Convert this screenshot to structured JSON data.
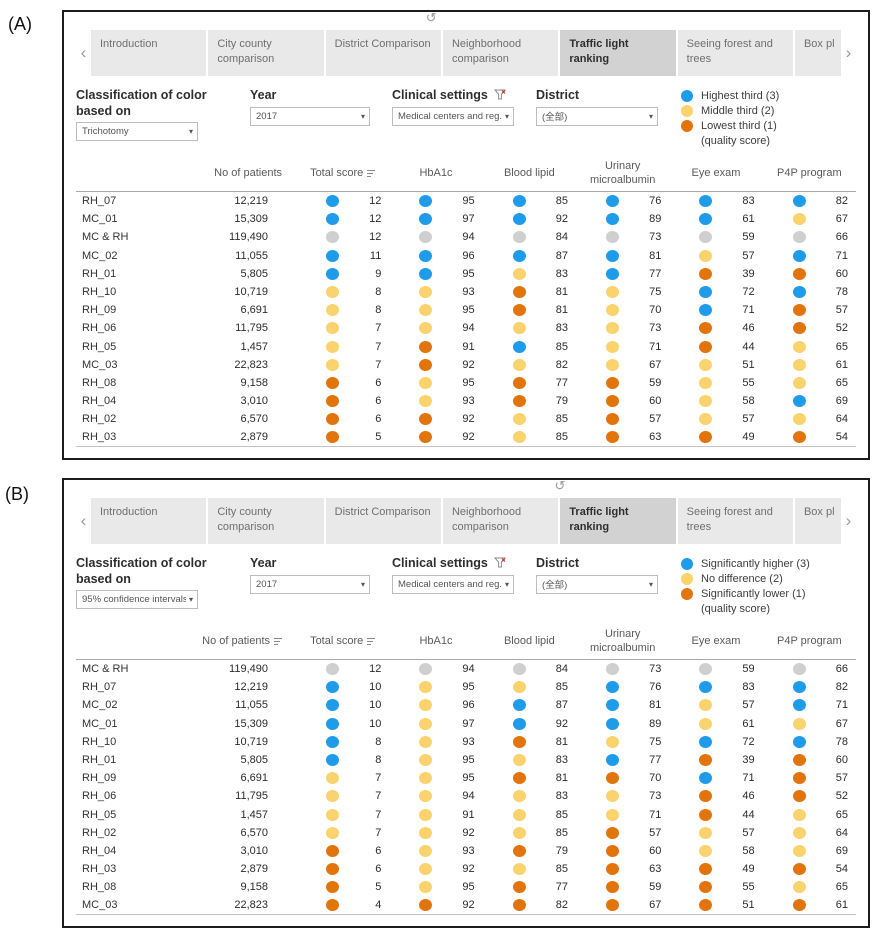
{
  "figure": {
    "panelA_label": "(A)",
    "panelB_label": "(B)"
  },
  "colors": {
    "blue": "#1e9be9",
    "yellow": "#fbd36e",
    "orange": "#e2740c",
    "gray": "#cfcfcf"
  },
  "icons": {
    "refresh_glyph": "↺",
    "caret_glyph": "▾",
    "chevron_left": "‹",
    "chevron_right": "›",
    "funnel_icon": "filter-funnel",
    "sort_icon": "sort-bars"
  },
  "tabs": {
    "items": [
      "Introduction",
      "City county comparison",
      "District Comparison",
      "Neighborhood comparison",
      "Traffic light ranking",
      "Seeing forest and trees",
      "Box pl"
    ],
    "active_index": 4
  },
  "table_headers": {
    "patients": "No of patients",
    "score": "Total score",
    "hba1c": "HbA1c",
    "lipid": "Blood lipid",
    "urinary": "Urinary microalbumin",
    "eye": "Eye exam",
    "p4p": "P4P program"
  },
  "panelA": {
    "label": "(A)",
    "refresh_left": "45%",
    "filters": {
      "classification": {
        "label": "Classification of color based on",
        "value": "Trichotomy"
      },
      "year": {
        "label": "Year",
        "value": "2017"
      },
      "clinical": {
        "label": "Clinical settings",
        "value": "Medical centers and reg..."
      },
      "district": {
        "label": "District",
        "value": "(全部)"
      }
    },
    "legend": {
      "items": [
        {
          "color": "blue",
          "label": "Highest third (3)"
        },
        {
          "color": "yellow",
          "label": "Middle third (2)"
        },
        {
          "color": "orange",
          "label": "Lowest third (1)"
        }
      ],
      "note": "(quality score)"
    },
    "table": {
      "patients_sort": false,
      "score_sort": true,
      "rows": [
        {
          "name": "RH_07",
          "patients": "12,219",
          "score": [
            "blue",
            12
          ],
          "hba1c": [
            "blue",
            95
          ],
          "lipid": [
            "blue",
            85
          ],
          "urinary": [
            "blue",
            76
          ],
          "eye": [
            "blue",
            83
          ],
          "p4p": [
            "blue",
            82
          ]
        },
        {
          "name": "MC_01",
          "patients": "15,309",
          "score": [
            "blue",
            12
          ],
          "hba1c": [
            "blue",
            97
          ],
          "lipid": [
            "blue",
            92
          ],
          "urinary": [
            "blue",
            89
          ],
          "eye": [
            "blue",
            61
          ],
          "p4p": [
            "yellow",
            67
          ]
        },
        {
          "name": "MC & RH",
          "patients": "119,490",
          "score": [
            "gray",
            12
          ],
          "hba1c": [
            "gray",
            94
          ],
          "lipid": [
            "gray",
            84
          ],
          "urinary": [
            "gray",
            73
          ],
          "eye": [
            "gray",
            59
          ],
          "p4p": [
            "gray",
            66
          ]
        },
        {
          "name": "MC_02",
          "patients": "11,055",
          "score": [
            "blue",
            11
          ],
          "hba1c": [
            "blue",
            96
          ],
          "lipid": [
            "blue",
            87
          ],
          "urinary": [
            "blue",
            81
          ],
          "eye": [
            "yellow",
            57
          ],
          "p4p": [
            "blue",
            71
          ]
        },
        {
          "name": "RH_01",
          "patients": "5,805",
          "score": [
            "blue",
            9
          ],
          "hba1c": [
            "blue",
            95
          ],
          "lipid": [
            "yellow",
            83
          ],
          "urinary": [
            "blue",
            77
          ],
          "eye": [
            "orange",
            39
          ],
          "p4p": [
            "orange",
            60
          ]
        },
        {
          "name": "RH_10",
          "patients": "10,719",
          "score": [
            "yellow",
            8
          ],
          "hba1c": [
            "yellow",
            93
          ],
          "lipid": [
            "orange",
            81
          ],
          "urinary": [
            "yellow",
            75
          ],
          "eye": [
            "blue",
            72
          ],
          "p4p": [
            "blue",
            78
          ]
        },
        {
          "name": "RH_09",
          "patients": "6,691",
          "score": [
            "yellow",
            8
          ],
          "hba1c": [
            "yellow",
            95
          ],
          "lipid": [
            "orange",
            81
          ],
          "urinary": [
            "yellow",
            70
          ],
          "eye": [
            "blue",
            71
          ],
          "p4p": [
            "orange",
            57
          ]
        },
        {
          "name": "RH_06",
          "patients": "11,795",
          "score": [
            "yellow",
            7
          ],
          "hba1c": [
            "yellow",
            94
          ],
          "lipid": [
            "yellow",
            83
          ],
          "urinary": [
            "yellow",
            73
          ],
          "eye": [
            "orange",
            46
          ],
          "p4p": [
            "orange",
            52
          ]
        },
        {
          "name": "RH_05",
          "patients": "1,457",
          "score": [
            "yellow",
            7
          ],
          "hba1c": [
            "orange",
            91
          ],
          "lipid": [
            "blue",
            85
          ],
          "urinary": [
            "yellow",
            71
          ],
          "eye": [
            "orange",
            44
          ],
          "p4p": [
            "yellow",
            65
          ]
        },
        {
          "name": "MC_03",
          "patients": "22,823",
          "score": [
            "yellow",
            7
          ],
          "hba1c": [
            "orange",
            92
          ],
          "lipid": [
            "yellow",
            82
          ],
          "urinary": [
            "yellow",
            67
          ],
          "eye": [
            "yellow",
            51
          ],
          "p4p": [
            "yellow",
            61
          ]
        },
        {
          "name": "RH_08",
          "patients": "9,158",
          "score": [
            "orange",
            6
          ],
          "hba1c": [
            "yellow",
            95
          ],
          "lipid": [
            "orange",
            77
          ],
          "urinary": [
            "orange",
            59
          ],
          "eye": [
            "yellow",
            55
          ],
          "p4p": [
            "yellow",
            65
          ]
        },
        {
          "name": "RH_04",
          "patients": "3,010",
          "score": [
            "orange",
            6
          ],
          "hba1c": [
            "yellow",
            93
          ],
          "lipid": [
            "orange",
            79
          ],
          "urinary": [
            "orange",
            60
          ],
          "eye": [
            "yellow",
            58
          ],
          "p4p": [
            "blue",
            69
          ]
        },
        {
          "name": "RH_02",
          "patients": "6,570",
          "score": [
            "orange",
            6
          ],
          "hba1c": [
            "orange",
            92
          ],
          "lipid": [
            "yellow",
            85
          ],
          "urinary": [
            "orange",
            57
          ],
          "eye": [
            "yellow",
            57
          ],
          "p4p": [
            "yellow",
            64
          ]
        },
        {
          "name": "RH_03",
          "patients": "2,879",
          "score": [
            "orange",
            5
          ],
          "hba1c": [
            "orange",
            92
          ],
          "lipid": [
            "yellow",
            85
          ],
          "urinary": [
            "orange",
            63
          ],
          "eye": [
            "orange",
            49
          ],
          "p4p": [
            "orange",
            54
          ]
        }
      ]
    }
  },
  "panelB": {
    "label": "(B)",
    "refresh_left": "61%",
    "filters": {
      "classification": {
        "label": "Classification of color based on",
        "value": "95% confidence intervals"
      },
      "year": {
        "label": "Year",
        "value": "2017"
      },
      "clinical": {
        "label": "Clinical settings",
        "value": "Medical centers and reg..."
      },
      "district": {
        "label": "District",
        "value": "(全部)"
      }
    },
    "legend": {
      "items": [
        {
          "color": "blue",
          "label": "Significantly higher (3)"
        },
        {
          "color": "yellow",
          "label": "No difference (2)"
        },
        {
          "color": "orange",
          "label": "Significantly lower (1)"
        }
      ],
      "note": "(quality score)"
    },
    "table": {
      "patients_sort": true,
      "score_sort": true,
      "rows": [
        {
          "name": "MC & RH",
          "patients": "119,490",
          "score": [
            "gray",
            12
          ],
          "hba1c": [
            "gray",
            94
          ],
          "lipid": [
            "gray",
            84
          ],
          "urinary": [
            "gray",
            73
          ],
          "eye": [
            "gray",
            59
          ],
          "p4p": [
            "gray",
            66
          ]
        },
        {
          "name": "RH_07",
          "patients": "12,219",
          "score": [
            "blue",
            10
          ],
          "hba1c": [
            "yellow",
            95
          ],
          "lipid": [
            "yellow",
            85
          ],
          "urinary": [
            "blue",
            76
          ],
          "eye": [
            "blue",
            83
          ],
          "p4p": [
            "blue",
            82
          ]
        },
        {
          "name": "MC_02",
          "patients": "11,055",
          "score": [
            "blue",
            10
          ],
          "hba1c": [
            "yellow",
            96
          ],
          "lipid": [
            "blue",
            87
          ],
          "urinary": [
            "blue",
            81
          ],
          "eye": [
            "yellow",
            57
          ],
          "p4p": [
            "blue",
            71
          ]
        },
        {
          "name": "MC_01",
          "patients": "15,309",
          "score": [
            "blue",
            10
          ],
          "hba1c": [
            "yellow",
            97
          ],
          "lipid": [
            "blue",
            92
          ],
          "urinary": [
            "blue",
            89
          ],
          "eye": [
            "yellow",
            61
          ],
          "p4p": [
            "yellow",
            67
          ]
        },
        {
          "name": "RH_10",
          "patients": "10,719",
          "score": [
            "blue",
            8
          ],
          "hba1c": [
            "yellow",
            93
          ],
          "lipid": [
            "orange",
            81
          ],
          "urinary": [
            "yellow",
            75
          ],
          "eye": [
            "blue",
            72
          ],
          "p4p": [
            "blue",
            78
          ]
        },
        {
          "name": "RH_01",
          "patients": "5,805",
          "score": [
            "blue",
            8
          ],
          "hba1c": [
            "yellow",
            95
          ],
          "lipid": [
            "yellow",
            83
          ],
          "urinary": [
            "blue",
            77
          ],
          "eye": [
            "orange",
            39
          ],
          "p4p": [
            "orange",
            60
          ]
        },
        {
          "name": "RH_09",
          "patients": "6,691",
          "score": [
            "yellow",
            7
          ],
          "hba1c": [
            "yellow",
            95
          ],
          "lipid": [
            "orange",
            81
          ],
          "urinary": [
            "orange",
            70
          ],
          "eye": [
            "blue",
            71
          ],
          "p4p": [
            "orange",
            57
          ]
        },
        {
          "name": "RH_06",
          "patients": "11,795",
          "score": [
            "yellow",
            7
          ],
          "hba1c": [
            "yellow",
            94
          ],
          "lipid": [
            "yellow",
            83
          ],
          "urinary": [
            "yellow",
            73
          ],
          "eye": [
            "orange",
            46
          ],
          "p4p": [
            "orange",
            52
          ]
        },
        {
          "name": "RH_05",
          "patients": "1,457",
          "score": [
            "yellow",
            7
          ],
          "hba1c": [
            "yellow",
            91
          ],
          "lipid": [
            "yellow",
            85
          ],
          "urinary": [
            "yellow",
            71
          ],
          "eye": [
            "orange",
            44
          ],
          "p4p": [
            "yellow",
            65
          ]
        },
        {
          "name": "RH_02",
          "patients": "6,570",
          "score": [
            "yellow",
            7
          ],
          "hba1c": [
            "yellow",
            92
          ],
          "lipid": [
            "yellow",
            85
          ],
          "urinary": [
            "orange",
            57
          ],
          "eye": [
            "yellow",
            57
          ],
          "p4p": [
            "yellow",
            64
          ]
        },
        {
          "name": "RH_04",
          "patients": "3,010",
          "score": [
            "orange",
            6
          ],
          "hba1c": [
            "yellow",
            93
          ],
          "lipid": [
            "orange",
            79
          ],
          "urinary": [
            "orange",
            60
          ],
          "eye": [
            "yellow",
            58
          ],
          "p4p": [
            "yellow",
            69
          ]
        },
        {
          "name": "RH_03",
          "patients": "2,879",
          "score": [
            "orange",
            6
          ],
          "hba1c": [
            "yellow",
            92
          ],
          "lipid": [
            "yellow",
            85
          ],
          "urinary": [
            "orange",
            63
          ],
          "eye": [
            "orange",
            49
          ],
          "p4p": [
            "orange",
            54
          ]
        },
        {
          "name": "RH_08",
          "patients": "9,158",
          "score": [
            "orange",
            5
          ],
          "hba1c": [
            "yellow",
            95
          ],
          "lipid": [
            "orange",
            77
          ],
          "urinary": [
            "orange",
            59
          ],
          "eye": [
            "orange",
            55
          ],
          "p4p": [
            "yellow",
            65
          ]
        },
        {
          "name": "MC_03",
          "patients": "22,823",
          "score": [
            "orange",
            4
          ],
          "hba1c": [
            "orange",
            92
          ],
          "lipid": [
            "orange",
            82
          ],
          "urinary": [
            "orange",
            67
          ],
          "eye": [
            "orange",
            51
          ],
          "p4p": [
            "orange",
            61
          ]
        }
      ]
    }
  }
}
